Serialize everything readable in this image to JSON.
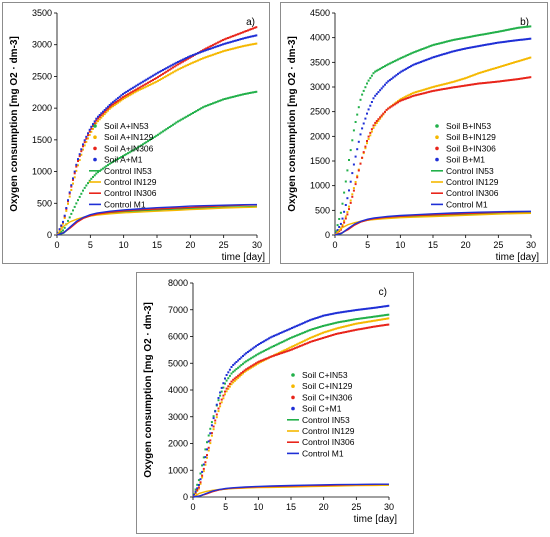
{
  "chart_data": [
    {
      "panel_label": "a)",
      "type": "line",
      "xlabel": "time [day]",
      "ylabel": "Oxygen consumption [mg O2 · dm-3]",
      "xlim": [
        0,
        30
      ],
      "ylim": [
        0,
        3500
      ],
      "xticks": [
        0,
        5,
        10,
        15,
        20,
        25,
        30
      ],
      "yticks": [
        0,
        500,
        1000,
        1500,
        2000,
        2500,
        3000,
        3500
      ],
      "x": [
        0,
        1,
        2,
        3,
        4,
        5,
        6,
        8,
        10,
        12,
        15,
        18,
        20,
        22,
        25,
        28,
        30
      ],
      "legend_position": "right",
      "series": [
        {
          "name": "Soil A+IN53",
          "style": "markers",
          "color": "#22b04a",
          "values": [
            0,
            80,
            300,
            520,
            720,
            870,
            980,
            1130,
            1250,
            1370,
            1570,
            1780,
            1900,
            2020,
            2140,
            2220,
            2260
          ]
        },
        {
          "name": "Soil A+IN129",
          "style": "markers",
          "color": "#f5b800",
          "values": [
            0,
            200,
            650,
            1050,
            1380,
            1600,
            1780,
            2000,
            2150,
            2270,
            2420,
            2600,
            2700,
            2790,
            2900,
            2980,
            3020
          ]
        },
        {
          "name": "Soil A+IN306",
          "style": "markers",
          "color": "#e8251b",
          "values": [
            0,
            220,
            700,
            1120,
            1430,
            1650,
            1820,
            2030,
            2180,
            2300,
            2480,
            2680,
            2800,
            2920,
            3080,
            3200,
            3280
          ]
        },
        {
          "name": "Soil A+M1",
          "style": "markers",
          "color": "#1f2fd6",
          "values": [
            0,
            230,
            720,
            1150,
            1460,
            1680,
            1850,
            2060,
            2230,
            2360,
            2550,
            2720,
            2820,
            2900,
            3010,
            3100,
            3150
          ]
        },
        {
          "name": "Control IN53",
          "style": "line",
          "color": "#22b04a",
          "values": [
            0,
            30,
            120,
            210,
            270,
            300,
            320,
            345,
            365,
            380,
            395,
            410,
            420,
            428,
            438,
            445,
            450
          ]
        },
        {
          "name": "Control IN129",
          "style": "line",
          "color": "#f5b800",
          "values": [
            0,
            140,
            210,
            250,
            280,
            300,
            315,
            335,
            350,
            360,
            375,
            390,
            400,
            410,
            425,
            435,
            440
          ]
        },
        {
          "name": "Control IN306",
          "style": "line",
          "color": "#e8251b",
          "values": [
            0,
            40,
            110,
            200,
            265,
            305,
            330,
            360,
            380,
            395,
            410,
            425,
            435,
            445,
            460,
            470,
            475
          ]
        },
        {
          "name": "Control M1",
          "style": "line",
          "color": "#1f2fd6",
          "values": [
            0,
            35,
            130,
            220,
            280,
            320,
            345,
            375,
            395,
            410,
            430,
            445,
            455,
            462,
            470,
            478,
            480
          ]
        }
      ]
    },
    {
      "panel_label": "b)",
      "type": "line",
      "xlabel": "time [day]",
      "ylabel": "Oxygen consumption [mg O2 · dm-3]",
      "xlim": [
        0,
        30
      ],
      "ylim": [
        0,
        4500
      ],
      "xticks": [
        0,
        5,
        10,
        15,
        20,
        25,
        30
      ],
      "yticks": [
        0,
        500,
        1000,
        1500,
        2000,
        2500,
        3000,
        3500,
        4000,
        4500
      ],
      "x": [
        0,
        1,
        2,
        3,
        4,
        5,
        6,
        8,
        10,
        12,
        15,
        18,
        20,
        22,
        25,
        28,
        30
      ],
      "legend_position": "right",
      "series": [
        {
          "name": "Soil B+IN53",
          "style": "markers",
          "color": "#22b04a",
          "values": [
            0,
            500,
            1400,
            2200,
            2800,
            3100,
            3300,
            3450,
            3580,
            3700,
            3850,
            3950,
            4000,
            4050,
            4120,
            4200,
            4230
          ]
        },
        {
          "name": "Soil B+IN129",
          "style": "markers",
          "color": "#f5b800",
          "values": [
            0,
            150,
            500,
            1000,
            1500,
            1900,
            2200,
            2550,
            2750,
            2880,
            3000,
            3100,
            3180,
            3280,
            3400,
            3520,
            3600
          ]
        },
        {
          "name": "Soil B+IN306",
          "style": "markers",
          "color": "#e8251b",
          "values": [
            0,
            120,
            450,
            950,
            1500,
            1950,
            2250,
            2550,
            2720,
            2820,
            2920,
            2990,
            3030,
            3070,
            3110,
            3160,
            3200
          ]
        },
        {
          "name": "Soil B+M1",
          "style": "markers",
          "color": "#1f2fd6",
          "values": [
            0,
            250,
            800,
            1500,
            2100,
            2500,
            2800,
            3100,
            3300,
            3450,
            3600,
            3720,
            3780,
            3830,
            3900,
            3950,
            3980
          ]
        },
        {
          "name": "Control IN53",
          "style": "line",
          "color": "#22b04a",
          "values": [
            0,
            30,
            120,
            210,
            270,
            300,
            320,
            345,
            365,
            380,
            395,
            410,
            420,
            428,
            438,
            445,
            450
          ]
        },
        {
          "name": "Control IN129",
          "style": "line",
          "color": "#f5b800",
          "values": [
            0,
            140,
            210,
            250,
            280,
            300,
            315,
            335,
            350,
            360,
            375,
            390,
            400,
            410,
            425,
            435,
            440
          ]
        },
        {
          "name": "Control IN306",
          "style": "line",
          "color": "#e8251b",
          "values": [
            0,
            40,
            110,
            200,
            265,
            305,
            330,
            360,
            380,
            395,
            410,
            425,
            435,
            445,
            460,
            470,
            475
          ]
        },
        {
          "name": "Control M1",
          "style": "line",
          "color": "#1f2fd6",
          "values": [
            0,
            35,
            130,
            220,
            280,
            320,
            345,
            375,
            395,
            410,
            430,
            445,
            455,
            462,
            470,
            478,
            480
          ]
        }
      ]
    },
    {
      "panel_label": "c)",
      "type": "line",
      "xlabel": "time [day]",
      "ylabel": "Oxygen consumption [mg O2 · dm-3]",
      "xlim": [
        0,
        30
      ],
      "ylim": [
        0,
        8000
      ],
      "xticks": [
        0,
        5,
        10,
        15,
        20,
        25,
        30
      ],
      "yticks": [
        0,
        1000,
        2000,
        3000,
        4000,
        5000,
        6000,
        7000,
        8000
      ],
      "x": [
        0,
        1,
        2,
        3,
        4,
        5,
        6,
        8,
        10,
        12,
        15,
        18,
        20,
        22,
        25,
        28,
        30
      ],
      "legend_position": "right",
      "series": [
        {
          "name": "Soil C+IN53",
          "style": "markers",
          "color": "#22b04a",
          "values": [
            0,
            700,
            1900,
            2900,
            3700,
            4300,
            4650,
            5050,
            5350,
            5600,
            5950,
            6250,
            6400,
            6520,
            6650,
            6750,
            6820
          ]
        },
        {
          "name": "Soil C+IN129",
          "style": "markers",
          "color": "#f5b800",
          "values": [
            0,
            350,
            1300,
            2400,
            3300,
            3900,
            4250,
            4700,
            5000,
            5250,
            5600,
            5950,
            6150,
            6300,
            6480,
            6600,
            6680
          ]
        },
        {
          "name": "Soil C+IN306",
          "style": "markers",
          "color": "#e8251b",
          "values": [
            0,
            400,
            1400,
            2500,
            3400,
            4000,
            4350,
            4750,
            5050,
            5250,
            5500,
            5800,
            5950,
            6100,
            6250,
            6380,
            6450
          ]
        },
        {
          "name": "Soil C+M1",
          "style": "markers",
          "color": "#1f2fd6",
          "values": [
            0,
            500,
            1600,
            2800,
            3800,
            4500,
            4900,
            5350,
            5700,
            5980,
            6300,
            6620,
            6780,
            6880,
            6990,
            7080,
            7150
          ]
        },
        {
          "name": "Control IN53",
          "style": "line",
          "color": "#22b04a",
          "values": [
            0,
            30,
            120,
            210,
            270,
            300,
            320,
            345,
            365,
            380,
            395,
            410,
            420,
            428,
            438,
            445,
            450
          ]
        },
        {
          "name": "Control IN129",
          "style": "line",
          "color": "#f5b800",
          "values": [
            0,
            140,
            210,
            250,
            280,
            300,
            315,
            335,
            350,
            360,
            375,
            390,
            400,
            410,
            425,
            435,
            440
          ]
        },
        {
          "name": "Control IN306",
          "style": "line",
          "color": "#e8251b",
          "values": [
            0,
            40,
            110,
            200,
            265,
            305,
            330,
            360,
            380,
            395,
            410,
            425,
            435,
            445,
            460,
            470,
            475
          ]
        },
        {
          "name": "Control M1",
          "style": "line",
          "color": "#1f2fd6",
          "values": [
            0,
            35,
            130,
            220,
            280,
            320,
            345,
            375,
            395,
            410,
            430,
            445,
            455,
            462,
            470,
            478,
            480
          ]
        }
      ]
    }
  ]
}
